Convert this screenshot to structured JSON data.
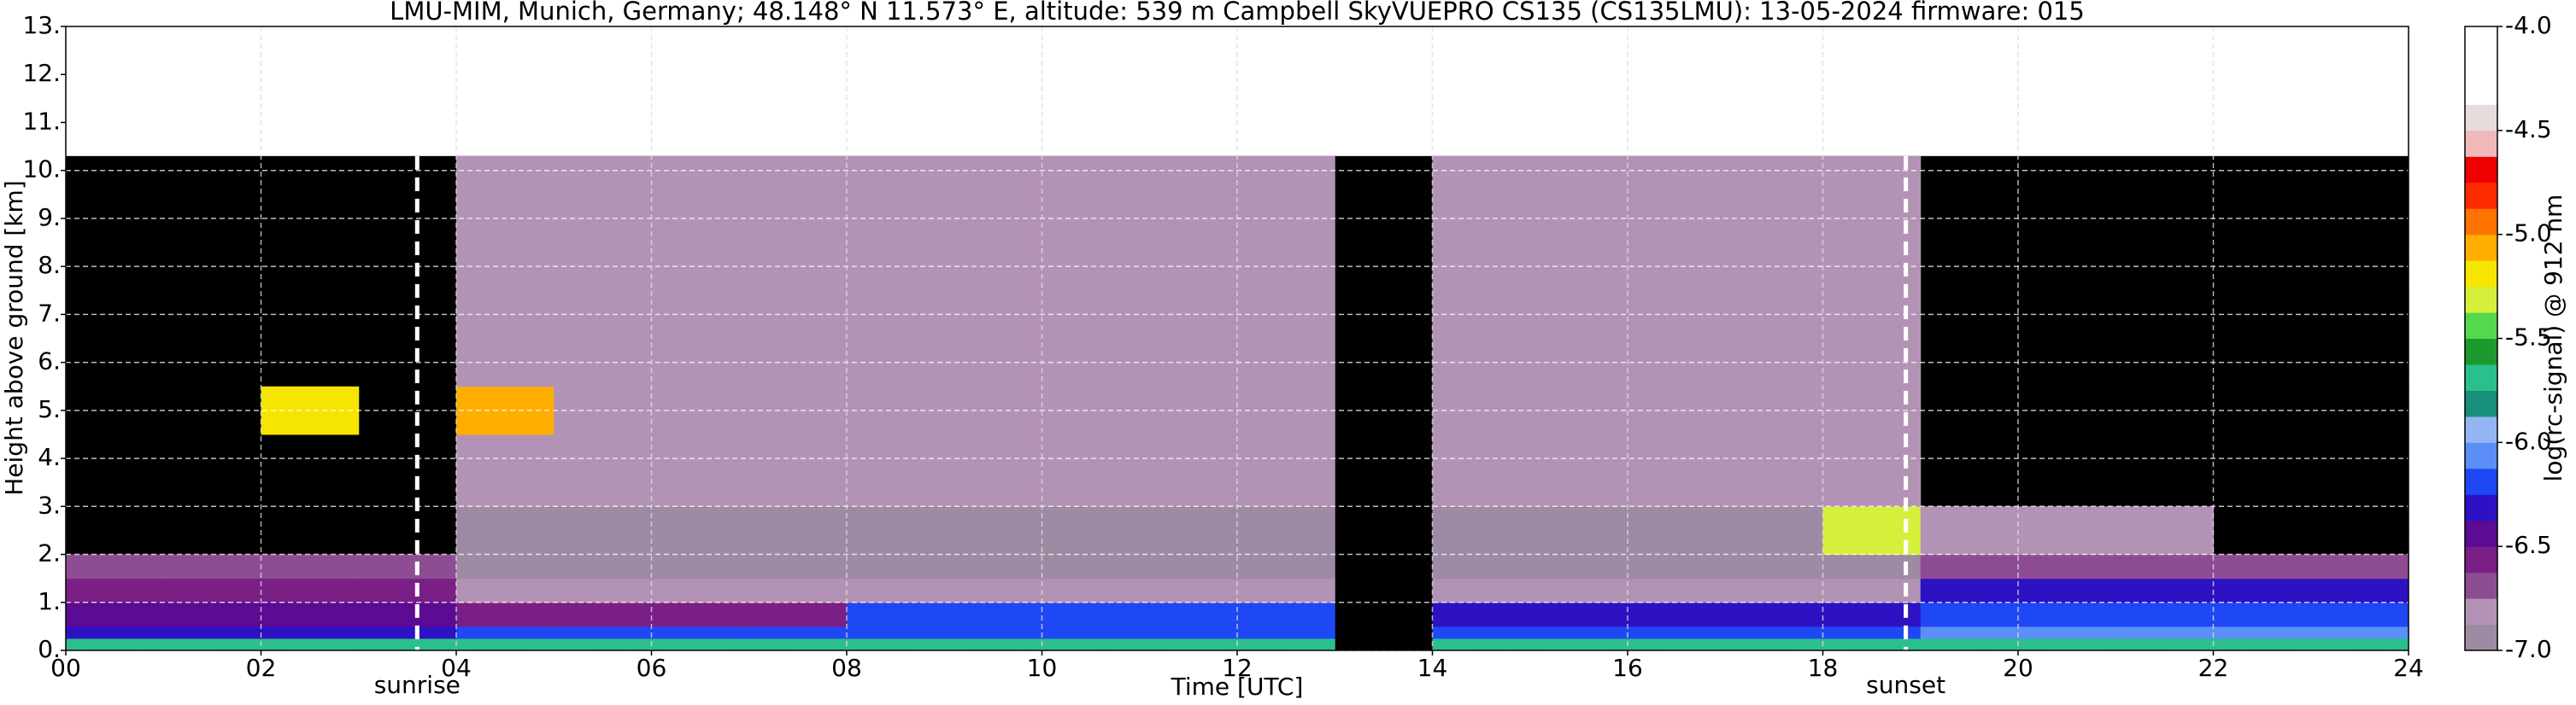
{
  "chart_data": {
    "type": "heatmap",
    "title": "LMU-MIM, Munich, Germany; 48.148° N 11.573° E, altitude: 539 m    Campbell SkyVUEPRO CS135 (CS135LMU): 13-05-2024    firmware: 015",
    "xlabel": "Time [UTC]",
    "ylabel": "Height above ground [km]",
    "xlim": [
      0,
      24
    ],
    "ylim": [
      0,
      13
    ],
    "xticks": [
      {
        "value": 0,
        "label": "00"
      },
      {
        "value": 2,
        "label": "02"
      },
      {
        "value": 4,
        "label": "04"
      },
      {
        "value": 6,
        "label": "06"
      },
      {
        "value": 8,
        "label": "08"
      },
      10,
      12,
      14,
      16,
      18,
      20,
      22,
      24
    ],
    "yticks": [
      {
        "value": 0,
        "label": "0."
      },
      {
        "value": 1,
        "label": "1."
      },
      {
        "value": 2,
        "label": "2."
      },
      {
        "value": 3,
        "label": "3."
      },
      {
        "value": 4,
        "label": "4."
      },
      {
        "value": 5,
        "label": "5."
      },
      {
        "value": 6,
        "label": "6."
      },
      {
        "value": 7,
        "label": "7."
      },
      {
        "value": 8,
        "label": "8."
      },
      {
        "value": 9,
        "label": "9."
      },
      {
        "value": 10,
        "label": "10."
      },
      {
        "value": 11,
        "label": "11."
      },
      {
        "value": 12,
        "label": "12."
      },
      {
        "value": 13,
        "label": "13."
      }
    ],
    "grid": true,
    "x_edges": [
      0,
      1,
      2,
      3,
      4,
      5,
      6,
      7,
      8,
      9,
      10,
      11,
      12,
      13,
      14,
      15,
      16,
      17,
      18,
      19,
      20,
      21,
      22,
      23,
      24
    ],
    "y_edges": [
      0,
      0.25,
      0.5,
      1,
      1.5,
      2,
      3,
      4.5,
      5.5,
      7,
      10.3
    ],
    "values": [
      [
        -5.7,
        -5.7,
        -5.7,
        -5.7,
        -5.7,
        -5.7,
        -5.7,
        -5.7,
        -5.7,
        -5.7,
        -5.7,
        -5.7,
        -5.7,
        null,
        -5.7,
        -5.7,
        -5.7,
        -5.7,
        -5.7,
        -5.7,
        -5.7,
        -5.7,
        -5.7,
        -5.7
      ],
      [
        -6.3,
        -6.3,
        -6.3,
        -6.3,
        -6.15,
        -6.15,
        -6.15,
        -6.15,
        -6.15,
        -6.15,
        -6.15,
        -6.15,
        -6.15,
        null,
        -6.2,
        -6.2,
        -6.2,
        -6.2,
        -6.2,
        -6.1,
        -6.1,
        -6.1,
        -6.1,
        -6.1
      ],
      [
        -6.4,
        -6.4,
        -6.4,
        -6.4,
        -6.55,
        -6.55,
        -6.55,
        -6.55,
        -6.2,
        -6.2,
        -6.2,
        -6.2,
        -6.2,
        null,
        -6.3,
        -6.3,
        -6.3,
        -6.3,
        -6.3,
        -6.2,
        -6.2,
        -6.2,
        -6.2,
        -6.2
      ],
      [
        -6.6,
        -6.6,
        -6.6,
        -6.6,
        -6.85,
        -6.85,
        -6.85,
        -6.85,
        -6.85,
        -6.85,
        -6.85,
        -6.85,
        -6.85,
        null,
        -6.85,
        -6.85,
        -6.85,
        -6.85,
        -6.85,
        -6.3,
        -6.3,
        -6.3,
        -6.3,
        -6.3
      ],
      [
        -6.7,
        -6.7,
        -6.7,
        -6.7,
        -6.9,
        -6.9,
        -6.9,
        -6.9,
        -6.9,
        -6.9,
        -6.9,
        -6.9,
        -6.9,
        null,
        -6.9,
        -6.9,
        -6.9,
        -6.9,
        -6.9,
        -6.7,
        -6.7,
        -6.7,
        -6.7,
        -6.7
      ],
      [
        null,
        null,
        null,
        null,
        -6.9,
        -6.9,
        -6.9,
        -6.9,
        -6.9,
        -6.9,
        -6.9,
        -6.9,
        -6.9,
        null,
        -6.9,
        -6.9,
        -6.9,
        -6.9,
        -5.3,
        -6.85,
        -6.85,
        -6.85,
        null,
        null
      ],
      [
        null,
        null,
        null,
        null,
        -6.85,
        -6.85,
        -6.85,
        -6.85,
        -6.85,
        -6.85,
        -6.85,
        -6.85,
        -6.85,
        null,
        -6.85,
        -6.85,
        -6.85,
        -6.85,
        -6.85,
        null,
        null,
        null,
        null,
        null
      ],
      [
        null,
        null,
        -5.2,
        null,
        -5.1,
        -6.85,
        -6.85,
        -6.85,
        -6.85,
        -6.85,
        -6.85,
        -6.85,
        -6.85,
        null,
        -6.85,
        -6.85,
        -6.85,
        -6.85,
        -6.85,
        null,
        null,
        null,
        null,
        null
      ],
      [
        null,
        null,
        null,
        null,
        -6.85,
        -6.85,
        -6.85,
        -6.85,
        -6.85,
        -6.85,
        -6.85,
        -6.85,
        -6.85,
        null,
        -6.85,
        -6.85,
        -6.85,
        -6.85,
        -6.85,
        null,
        null,
        null,
        null,
        null
      ],
      [
        null,
        null,
        null,
        null,
        -6.85,
        -6.85,
        -6.85,
        -6.85,
        -6.85,
        -6.85,
        -6.85,
        -6.85,
        -6.85,
        null,
        -6.85,
        -6.85,
        -6.85,
        -6.85,
        -6.85,
        null,
        null,
        null,
        null,
        null
      ]
    ],
    "no_signal_color": "#000000",
    "colorbar": {
      "label": "log(rc-signal) @ 912 nm",
      "lim": [
        -7,
        -4
      ],
      "ticks": [
        {
          "value": -4,
          "label": "-4.0"
        },
        {
          "value": -4.5,
          "label": "-4.5"
        },
        {
          "value": -5,
          "label": "-5.0"
        },
        {
          "value": -5.5,
          "label": "-5.5"
        },
        {
          "value": -6,
          "label": "-6.0"
        },
        {
          "value": -6.5,
          "label": "-6.5"
        },
        {
          "value": -7,
          "label": "-7.0"
        }
      ],
      "colors": [
        "#9e8aa3",
        "#b393b5",
        "#8e4d93",
        "#7a1f86",
        "#5b0b94",
        "#2d12c4",
        "#1f48f5",
        "#5b8ff7",
        "#93b6f2",
        "#178f7b",
        "#2bbf8e",
        "#1d9a2d",
        "#55d84d",
        "#d5ef3b",
        "#f5e500",
        "#ffae00",
        "#ff7200",
        "#ff2b00",
        "#ee0000",
        "#f0b8b8",
        "#e6dcdc",
        "#ffffff",
        "#ffffff",
        "#ffffff"
      ]
    },
    "annotations": [
      {
        "label": "sunrise",
        "x": 3.6
      },
      {
        "label": "sunset",
        "x": 18.85
      }
    ]
  }
}
